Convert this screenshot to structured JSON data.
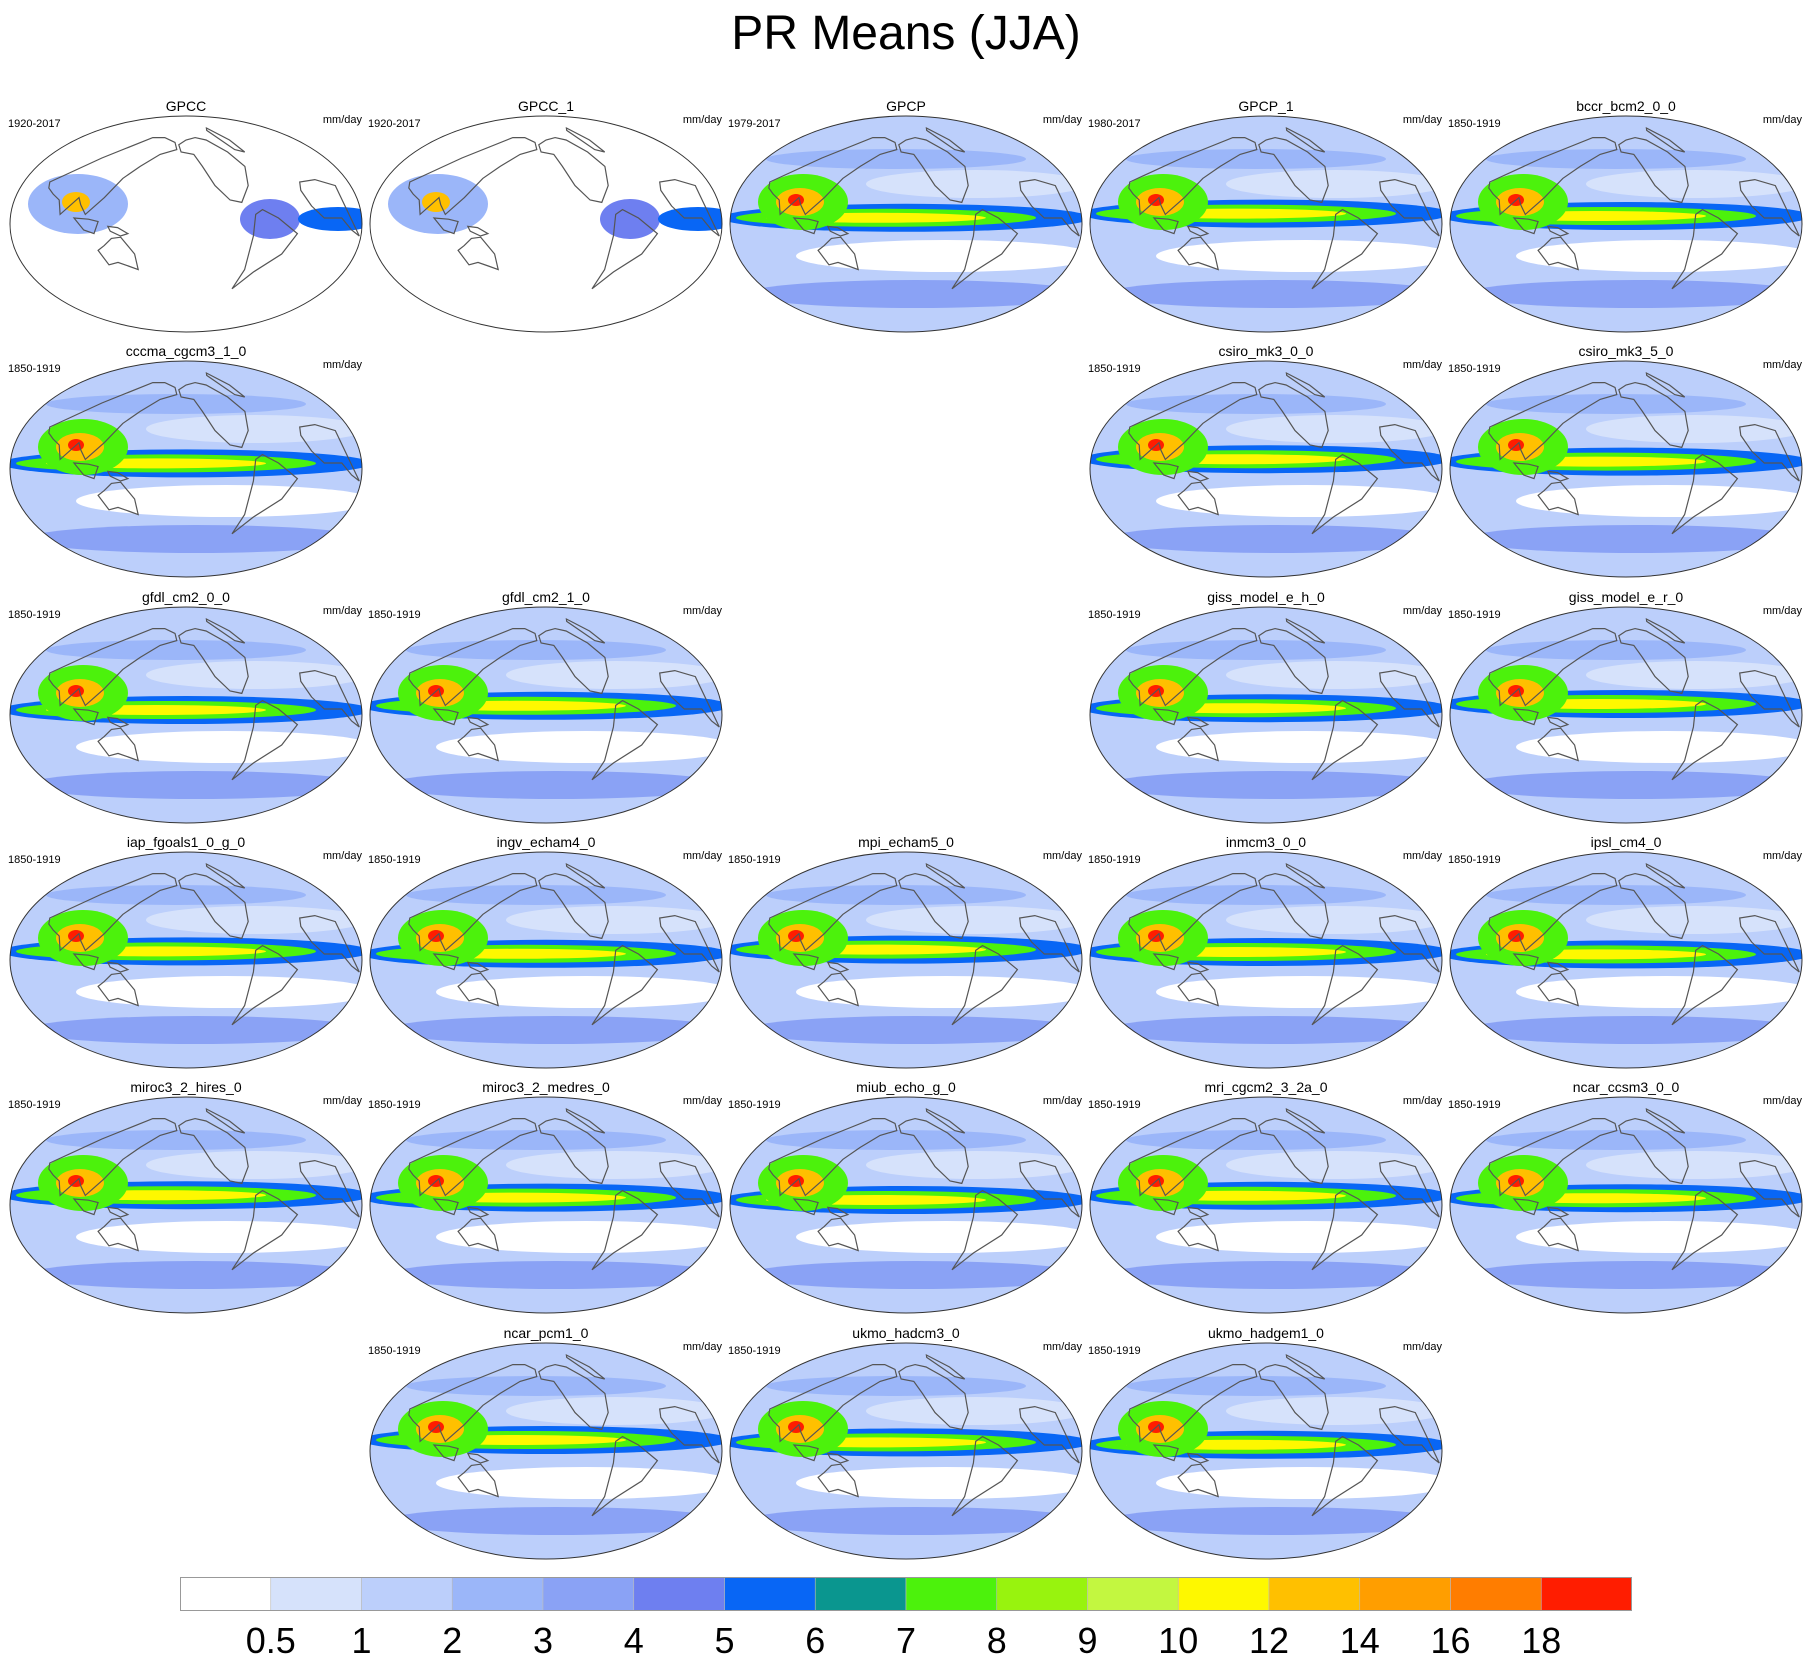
{
  "chart_data": {
    "type": "heatmap",
    "title": "PR Means (JJA)",
    "units": "mm/day",
    "colorbar": {
      "levels": [
        "0.5",
        "1",
        "2",
        "3",
        "4",
        "5",
        "6",
        "7",
        "8",
        "9",
        "10",
        "12",
        "14",
        "16",
        "18"
      ],
      "colors": [
        "#ffffff",
        "#d6e2fb",
        "#bccffb",
        "#9bb6f9",
        "#8aa2f5",
        "#6e7ff0",
        "#0866f5",
        "#0a968f",
        "#4cf20c",
        "#98f30e",
        "#c3f740",
        "#fef800",
        "#ffc000",
        "#ff9e00",
        "#ff7d00",
        "#ff1d00"
      ]
    },
    "panels": [
      {
        "name": "GPCC",
        "period": "1920-2017",
        "ocean": false,
        "row": 0,
        "col": 0
      },
      {
        "name": "GPCC_1",
        "period": "1920-2017",
        "ocean": false,
        "row": 0,
        "col": 1
      },
      {
        "name": "GPCP",
        "period": "1979-2017",
        "ocean": true,
        "row": 0,
        "col": 2
      },
      {
        "name": "GPCP_1",
        "period": "1980-2017",
        "ocean": true,
        "row": 0,
        "col": 3
      },
      {
        "name": "bccr_bcm2_0_0",
        "period": "1850-1919",
        "ocean": true,
        "row": 0,
        "col": 4
      },
      {
        "name": "cccma_cgcm3_1_0",
        "period": "1850-1919",
        "ocean": true,
        "row": 1,
        "col": 0
      },
      {
        "name": "csiro_mk3_0_0",
        "period": "1850-1919",
        "ocean": true,
        "row": 1,
        "col": 3
      },
      {
        "name": "csiro_mk3_5_0",
        "period": "1850-1919",
        "ocean": true,
        "row": 1,
        "col": 4
      },
      {
        "name": "gfdl_cm2_0_0",
        "period": "1850-1919",
        "ocean": true,
        "row": 2,
        "col": 0
      },
      {
        "name": "gfdl_cm2_1_0",
        "period": "1850-1919",
        "ocean": true,
        "row": 2,
        "col": 1
      },
      {
        "name": "giss_model_e_h_0",
        "period": "1850-1919",
        "ocean": true,
        "row": 2,
        "col": 3
      },
      {
        "name": "giss_model_e_r_0",
        "period": "1850-1919",
        "ocean": true,
        "row": 2,
        "col": 4
      },
      {
        "name": "iap_fgoals1_0_g_0",
        "period": "1850-1919",
        "ocean": true,
        "row": 3,
        "col": 0
      },
      {
        "name": "ingv_echam4_0",
        "period": "1850-1919",
        "ocean": true,
        "row": 3,
        "col": 1
      },
      {
        "name": "mpi_echam5_0",
        "period": "1850-1919",
        "ocean": true,
        "row": 3,
        "col": 2
      },
      {
        "name": "inmcm3_0_0",
        "period": "1850-1919",
        "ocean": true,
        "row": 3,
        "col": 3
      },
      {
        "name": "ipsl_cm4_0",
        "period": "1850-1919",
        "ocean": true,
        "row": 3,
        "col": 4
      },
      {
        "name": "miroc3_2_hires_0",
        "period": "1850-1919",
        "ocean": true,
        "row": 4,
        "col": 0
      },
      {
        "name": "miroc3_2_medres_0",
        "period": "1850-1919",
        "ocean": true,
        "row": 4,
        "col": 1
      },
      {
        "name": "miub_echo_g_0",
        "period": "1850-1919",
        "ocean": true,
        "row": 4,
        "col": 2
      },
      {
        "name": "mri_cgcm2_3_2a_0",
        "period": "1850-1919",
        "ocean": true,
        "row": 4,
        "col": 3
      },
      {
        "name": "ncar_ccsm3_0_0",
        "period": "1850-1919",
        "ocean": true,
        "row": 4,
        "col": 4
      },
      {
        "name": "ncar_pcm1_0",
        "period": "1850-1919",
        "ocean": true,
        "row": 5,
        "col": 1
      },
      {
        "name": "ukmo_hadcm3_0",
        "period": "1850-1919",
        "ocean": true,
        "row": 5,
        "col": 2
      },
      {
        "name": "ukmo_hadgem1_0",
        "period": "1850-1919",
        "ocean": true,
        "row": 5,
        "col": 3
      }
    ]
  }
}
